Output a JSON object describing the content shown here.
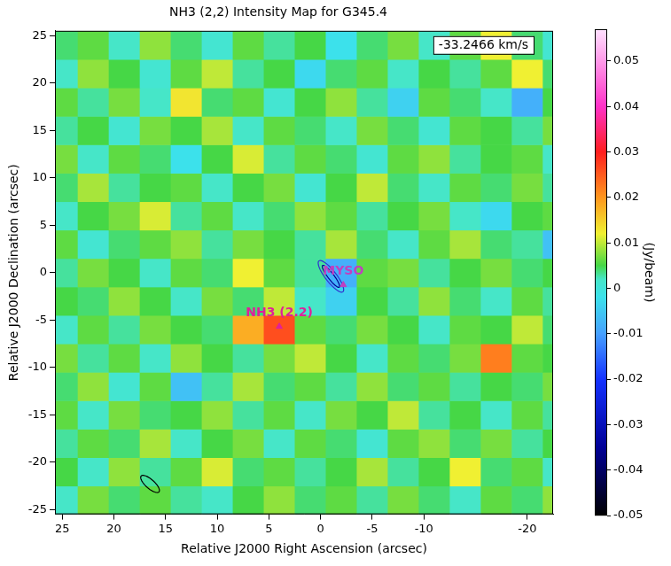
{
  "chart_data": {
    "type": "heatmap",
    "title": "NH3 (2,2) Intensity Map for G345.4",
    "panel_label": "-33.2466 km/s",
    "x_label": "Relative J2000 Right Ascension (arcsec)",
    "y_label": "Relative J2000 Declination (arcsec)",
    "x": [
      25,
      22,
      19,
      16,
      13,
      10,
      7,
      4,
      1,
      -2,
      -5,
      -8,
      -11,
      -14,
      -17,
      -20,
      -23
    ],
    "y": [
      -24,
      -21,
      -18,
      -15,
      -12,
      -9,
      -6,
      -3,
      0,
      3,
      6,
      9,
      12,
      15,
      18,
      21,
      24
    ],
    "cells": [
      [
        0.002,
        0.007,
        0.004,
        0.006,
        0.003,
        0.002,
        0.005,
        0.008,
        0.004,
        0.006,
        0.003,
        0.007,
        0.004,
        0.002,
        0.006,
        0.004,
        0.008
      ],
      [
        0.005,
        0.002,
        0.008,
        0.003,
        0.006,
        0.011,
        0.004,
        0.006,
        0.003,
        0.005,
        0.009,
        0.003,
        0.005,
        0.012,
        0.004,
        0.006,
        0.002
      ],
      [
        0.003,
        0.006,
        0.004,
        0.009,
        0.002,
        0.005,
        0.007,
        0.002,
        0.006,
        0.004,
        0.001,
        0.006,
        0.008,
        0.004,
        0.007,
        0.003,
        0.005
      ],
      [
        0.006,
        0.002,
        0.007,
        0.004,
        0.005,
        0.008,
        0.003,
        0.006,
        0.002,
        0.007,
        0.005,
        0.01,
        0.003,
        0.005,
        0.002,
        0.006,
        0.003
      ],
      [
        0.004,
        0.008,
        0.001,
        0.006,
        -0.006,
        0.003,
        0.009,
        0.004,
        0.006,
        0.003,
        0.008,
        0.004,
        0.006,
        0.003,
        0.005,
        0.004,
        0.007
      ],
      [
        0.007,
        0.003,
        0.006,
        0.002,
        0.008,
        0.005,
        0.003,
        0.007,
        0.01,
        0.005,
        0.002,
        0.006,
        0.004,
        0.007,
        0.022,
        0.006,
        0.005
      ],
      [
        0.002,
        0.006,
        0.003,
        0.007,
        0.005,
        0.004,
        0.018,
        0.026,
        0.006,
        0.004,
        0.007,
        0.005,
        0.002,
        0.006,
        0.005,
        0.01,
        0.004
      ],
      [
        0.005,
        0.004,
        0.008,
        0.005,
        0.002,
        0.007,
        0.004,
        0.01,
        0.002,
        -0.004,
        0.005,
        0.003,
        0.008,
        0.004,
        0.002,
        0.006,
        0.003
      ],
      [
        0.003,
        0.007,
        0.005,
        0.002,
        0.006,
        0.004,
        0.012,
        0.006,
        0.003,
        -0.008,
        0.006,
        0.007,
        0.003,
        0.005,
        0.007,
        0.004,
        0.005
      ],
      [
        0.006,
        0.001,
        0.004,
        0.006,
        0.008,
        0.003,
        0.007,
        0.005,
        0.003,
        0.009,
        0.004,
        0.002,
        0.006,
        0.009,
        0.004,
        0.003,
        -0.006
      ],
      [
        0.002,
        0.005,
        0.007,
        0.011,
        0.003,
        0.006,
        0.002,
        0.004,
        0.008,
        0.006,
        0.003,
        0.005,
        0.007,
        0.002,
        -0.003,
        0.005,
        0.006
      ],
      [
        0.004,
        0.009,
        0.003,
        0.005,
        0.006,
        0.002,
        0.005,
        0.007,
        0.001,
        0.005,
        0.01,
        0.004,
        0.002,
        0.006,
        0.004,
        0.007,
        0.003
      ],
      [
        0.007,
        0.002,
        0.006,
        0.004,
        -0.002,
        0.005,
        0.011,
        0.003,
        0.006,
        0.004,
        0.001,
        0.006,
        0.008,
        0.003,
        0.005,
        0.006,
        0.002
      ],
      [
        0.003,
        0.005,
        0.001,
        0.007,
        0.005,
        0.009,
        0.002,
        0.006,
        0.004,
        0.002,
        0.007,
        0.004,
        0.001,
        0.006,
        0.005,
        0.003,
        0.007
      ],
      [
        0.006,
        0.003,
        0.007,
        0.002,
        0.013,
        0.004,
        0.006,
        0.001,
        0.005,
        0.008,
        0.003,
        -0.004,
        0.006,
        0.004,
        0.002,
        -0.008,
        0.005
      ],
      [
        0.002,
        0.008,
        0.005,
        0.001,
        0.006,
        0.01,
        0.003,
        0.005,
        -0.003,
        0.004,
        0.006,
        0.002,
        0.005,
        0.003,
        0.006,
        0.012,
        0.004
      ],
      [
        0.004,
        0.006,
        0.002,
        0.008,
        0.004,
        0.001,
        0.006,
        0.003,
        0.005,
        -0.002,
        0.004,
        0.007,
        0.002,
        0.006,
        0.012,
        0.004,
        0.001
      ]
    ],
    "xlim": [
      25.7,
      -22.5
    ],
    "xticks": [
      25,
      20,
      15,
      10,
      5,
      0,
      -5,
      -10,
      -20
    ],
    "ylim": [
      -25.5,
      25.5
    ],
    "yticks": [
      -25,
      -20,
      -15,
      -10,
      -5,
      0,
      5,
      10,
      15,
      20,
      25
    ],
    "grid": false,
    "colorbar": {
      "label": "(Jy/beam)",
      "range": [
        -0.05,
        0.057
      ],
      "ticks": [
        -0.05,
        -0.04,
        -0.03,
        -0.02,
        -0.01,
        0,
        0.01,
        0.02,
        0.03,
        0.04,
        0.05
      ]
    },
    "annotations": [
      {
        "text": "MYSO",
        "x": -2.2,
        "y": -1.3,
        "color": "#c040c0"
      },
      {
        "text": "NH3 (2.2)",
        "x": 4.0,
        "y": -5.7,
        "color": "#e0209a"
      }
    ],
    "contours": [
      {
        "x": -1.0,
        "y": -0.4,
        "major": 2.0,
        "minor": 0.55,
        "angle": 55,
        "color": "#3030d0"
      },
      {
        "x": -1.0,
        "y": -0.4,
        "major": 1.4,
        "minor": 0.3,
        "angle": 55,
        "color": "#000090"
      }
    ],
    "beam": {
      "x": 16.5,
      "y": -22.3,
      "major": 1.2,
      "minor": 0.45,
      "angle": 45,
      "color": "#000000"
    }
  }
}
